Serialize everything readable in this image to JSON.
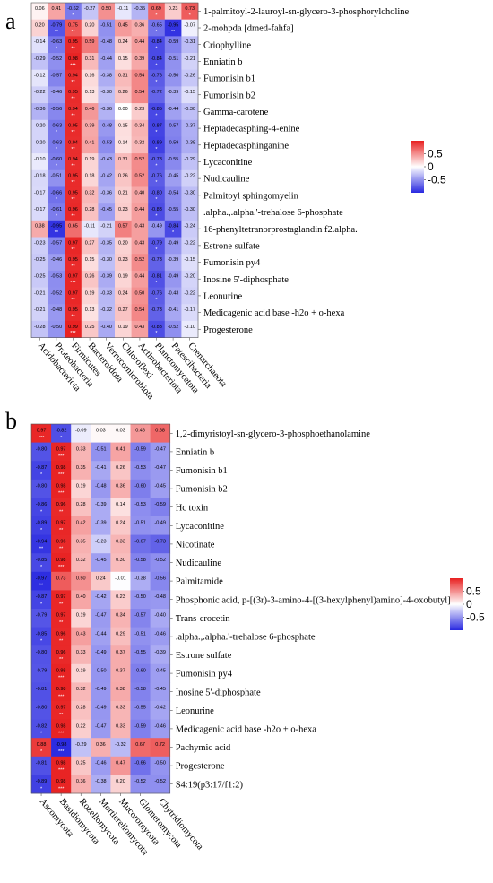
{
  "colors": {
    "neg": "#2828e0",
    "mid": "#ffffff",
    "pos": "#e82020"
  },
  "chart_data": [
    {
      "type": "heatmap",
      "panel_label": "a",
      "columns": [
        "Acidobacteriota",
        "Proteobacteria",
        "Firmicutes",
        "Bacteroidota",
        "Verrucomicrobiota",
        "Chloroflexi",
        "Actinobacteriota",
        "Planctomycetota",
        "Patescibacteria",
        "Crenarchaeota"
      ],
      "legend": {
        "ticks": [
          "0.5",
          "0",
          "-0.5"
        ]
      },
      "rows": [
        {
          "label": "1-palmitoyl-2-lauroyl-sn-glycero-3-phosphorylcholine",
          "values": [
            0.06,
            0.41,
            -0.62,
            -0.27,
            0.5,
            -0.11,
            -0.35,
            0.69,
            0.23,
            0.73
          ],
          "sig": [
            "",
            "",
            "*",
            "",
            "",
            "",
            "",
            "*",
            "",
            "*"
          ]
        },
        {
          "label": "2-mohpda [dmed-fahfa]",
          "values": [
            0.2,
            -0.79,
            0.75,
            0.2,
            -0.51,
            0.45,
            0.36,
            -0.65,
            -0.95,
            -0.07
          ],
          "sig": [
            "",
            "**",
            "**",
            "",
            "",
            "",
            "",
            "*",
            "**",
            ""
          ]
        },
        {
          "label": "Criophylline",
          "values": [
            -0.14,
            -0.63,
            0.95,
            0.59,
            -0.48,
            0.24,
            0.44,
            -0.84,
            -0.59,
            -0.31
          ],
          "sig": [
            "",
            "*",
            "**",
            "",
            "",
            "",
            "",
            "*",
            "",
            ""
          ]
        },
        {
          "label": "Enniatin b",
          "values": [
            -0.29,
            -0.52,
            0.98,
            0.31,
            -0.44,
            0.15,
            0.39,
            -0.84,
            -0.51,
            -0.21
          ],
          "sig": [
            "",
            "",
            "***",
            "",
            "",
            "",
            "",
            "*",
            "",
            ""
          ]
        },
        {
          "label": "Fumonisin b1",
          "values": [
            -0.12,
            -0.57,
            0.94,
            0.16,
            -0.38,
            0.31,
            0.54,
            -0.76,
            -0.5,
            -0.26
          ],
          "sig": [
            "",
            "",
            "**",
            "",
            "",
            "",
            "",
            "*",
            "",
            ""
          ]
        },
        {
          "label": "Fumonisin b2",
          "values": [
            -0.22,
            -0.46,
            0.95,
            0.13,
            -0.3,
            0.26,
            0.54,
            -0.72,
            -0.39,
            -0.15
          ],
          "sig": [
            "",
            "",
            "**",
            "",
            "",
            "",
            "",
            "",
            "",
            ""
          ]
        },
        {
          "label": "Gamma-carotene",
          "values": [
            -0.36,
            -0.56,
            0.94,
            0.46,
            -0.36,
            0.0,
            0.23,
            -0.85,
            -0.44,
            -0.3
          ],
          "sig": [
            "",
            "",
            "**",
            "",
            "",
            "",
            "",
            "*",
            "",
            ""
          ]
        },
        {
          "label": "Heptadecasphing-4-enine",
          "values": [
            -0.2,
            -0.63,
            0.95,
            0.39,
            -0.48,
            0.15,
            0.34,
            -0.87,
            -0.57,
            -0.37
          ],
          "sig": [
            "",
            "*",
            "**",
            "",
            "",
            "",
            "",
            "*",
            "",
            ""
          ]
        },
        {
          "label": "Heptadecasphinganine",
          "values": [
            -0.2,
            -0.63,
            0.94,
            0.41,
            -0.53,
            0.14,
            0.32,
            -0.89,
            -0.59,
            -0.38
          ],
          "sig": [
            "",
            "*",
            "**",
            "",
            "",
            "",
            "",
            "*",
            "",
            ""
          ]
        },
        {
          "label": "Lycaconitine",
          "values": [
            -0.1,
            -0.6,
            0.94,
            0.19,
            -0.43,
            0.31,
            0.52,
            -0.78,
            -0.55,
            -0.29
          ],
          "sig": [
            "",
            "*",
            "**",
            "",
            "",
            "",
            "",
            "*",
            "",
            ""
          ]
        },
        {
          "label": "Nudicauline",
          "values": [
            -0.18,
            -0.51,
            0.95,
            0.18,
            -0.42,
            0.26,
            0.52,
            -0.76,
            -0.45,
            -0.22
          ],
          "sig": [
            "",
            "",
            "**",
            "",
            "",
            "",
            "",
            "*",
            "",
            ""
          ]
        },
        {
          "label": "Palmitoyl sphingomyelin",
          "values": [
            -0.17,
            -0.66,
            0.95,
            0.32,
            -0.36,
            0.21,
            0.4,
            -0.8,
            -0.54,
            -0.3
          ],
          "sig": [
            "",
            "*",
            "**",
            "",
            "",
            "",
            "",
            "*",
            "",
            ""
          ]
        },
        {
          "label": ".alpha.,.alpha.'-trehalose 6-phosphate",
          "values": [
            -0.17,
            -0.61,
            0.96,
            0.28,
            -0.45,
            0.23,
            0.44,
            -0.83,
            -0.55,
            -0.3
          ],
          "sig": [
            "",
            "*",
            "**",
            "",
            "",
            "",
            "",
            "*",
            "",
            ""
          ]
        },
        {
          "label": "16-phenyltetranorprostaglandin f2.alpha.",
          "values": [
            0.38,
            -0.95,
            0.65,
            -0.11,
            -0.21,
            0.57,
            0.43,
            -0.49,
            -0.84,
            -0.24
          ],
          "sig": [
            "",
            "**",
            "",
            "",
            "",
            "",
            "",
            "",
            "*",
            ""
          ]
        },
        {
          "label": "Estrone sulfate",
          "values": [
            -0.23,
            -0.57,
            0.97,
            0.27,
            -0.35,
            0.2,
            0.43,
            -0.79,
            -0.49,
            -0.22
          ],
          "sig": [
            "",
            "",
            "**",
            "",
            "",
            "",
            "",
            "*",
            "",
            ""
          ]
        },
        {
          "label": "Fumonisin py4",
          "values": [
            -0.25,
            -0.46,
            0.95,
            0.15,
            -0.3,
            0.23,
            0.52,
            -0.73,
            -0.39,
            -0.15
          ],
          "sig": [
            "",
            "",
            "**",
            "",
            "",
            "",
            "",
            "",
            "",
            ""
          ]
        },
        {
          "label": "Inosine 5'-diphosphate",
          "values": [
            -0.25,
            -0.53,
            0.97,
            0.26,
            -0.39,
            0.19,
            0.44,
            -0.81,
            -0.49,
            -0.2
          ],
          "sig": [
            "",
            "",
            "***",
            "",
            "",
            "",
            "",
            "*",
            "",
            ""
          ]
        },
        {
          "label": "Leonurine",
          "values": [
            -0.21,
            -0.52,
            0.97,
            0.19,
            -0.33,
            0.24,
            0.5,
            -0.76,
            -0.43,
            -0.22
          ],
          "sig": [
            "",
            "",
            "**",
            "",
            "",
            "",
            "",
            "*",
            "",
            ""
          ]
        },
        {
          "label": "Medicagenic acid base -h2o + o-hexa",
          "values": [
            -0.21,
            -0.48,
            0.95,
            0.13,
            -0.32,
            0.27,
            0.54,
            -0.73,
            -0.41,
            -0.17
          ],
          "sig": [
            "",
            "",
            "**",
            "",
            "",
            "",
            "",
            "",
            "",
            ""
          ]
        },
        {
          "label": "Progesterone",
          "values": [
            -0.28,
            -0.5,
            0.99,
            0.25,
            -0.4,
            0.19,
            0.43,
            -0.83,
            -0.52,
            -0.1
          ],
          "sig": [
            "",
            "",
            "***",
            "",
            "",
            "",
            "",
            "*",
            "",
            ""
          ]
        }
      ]
    },
    {
      "type": "heatmap",
      "panel_label": "b",
      "columns": [
        "Ascomycota",
        "Basidiomycota",
        "Rozellomycota",
        "Mortierellomycota",
        "Mucoromycota",
        "Glomeromycota",
        "Chytridiomycota"
      ],
      "legend": {
        "ticks": [
          "0.5",
          "0",
          "-0.5"
        ]
      },
      "rows": [
        {
          "label": "1,2-dimyristoyl-sn-glycero-3-phosphoethanolamine",
          "values": [
            0.97,
            -0.82,
            -0.09,
            0.03,
            0.03,
            0.46,
            0.68
          ],
          "sig": [
            "***",
            "*",
            "",
            "",
            "",
            "",
            ""
          ]
        },
        {
          "label": "Enniatin b",
          "values": [
            -0.8,
            0.97,
            0.33,
            -0.51,
            0.41,
            -0.59,
            -0.47
          ],
          "sig": [
            "",
            "***",
            "",
            "",
            "",
            "",
            ""
          ]
        },
        {
          "label": "Fumonisin b1",
          "values": [
            -0.87,
            0.98,
            0.35,
            -0.41,
            0.26,
            -0.53,
            -0.47
          ],
          "sig": [
            "*",
            "***",
            "",
            "",
            "",
            "",
            ""
          ]
        },
        {
          "label": "Fumonisin b2",
          "values": [
            -0.8,
            0.98,
            0.19,
            -0.48,
            0.36,
            -0.6,
            -0.45
          ],
          "sig": [
            "",
            "***",
            "",
            "",
            "",
            "",
            ""
          ]
        },
        {
          "label": "Hc toxin",
          "values": [
            -0.86,
            0.96,
            0.28,
            -0.39,
            0.14,
            -0.53,
            -0.59
          ],
          "sig": [
            "*",
            "**",
            "",
            "",
            "",
            "",
            ""
          ]
        },
        {
          "label": "Lycaconitine",
          "values": [
            -0.89,
            0.97,
            0.42,
            -0.39,
            0.24,
            -0.51,
            -0.49
          ],
          "sig": [
            "*",
            "**",
            "",
            "",
            "",
            "",
            ""
          ]
        },
        {
          "label": "Nicotinate",
          "values": [
            -0.94,
            0.96,
            0.35,
            -0.23,
            0.33,
            -0.67,
            -0.73
          ],
          "sig": [
            "**",
            "**",
            "",
            "",
            "",
            "",
            ""
          ]
        },
        {
          "label": "Nudicauline",
          "values": [
            -0.85,
            0.98,
            0.32,
            -0.45,
            0.3,
            -0.58,
            -0.52
          ],
          "sig": [
            "*",
            "***",
            "",
            "",
            "",
            "",
            ""
          ]
        },
        {
          "label": "Palmitamide",
          "values": [
            -0.97,
            0.73,
            0.5,
            0.24,
            -0.01,
            -0.38,
            -0.56
          ],
          "sig": [
            "**",
            "",
            "",
            "",
            "",
            "",
            ""
          ]
        },
        {
          "label": "Phosphonic acid, p-[(3r)-3-amino-4-[(3-hexylphenyl)amino]-4-oxobutyl]-",
          "values": [
            -0.87,
            0.97,
            0.4,
            -0.42,
            0.23,
            -0.5,
            -0.48
          ],
          "sig": [
            "*",
            "**",
            "",
            "",
            "",
            "",
            ""
          ]
        },
        {
          "label": "Trans-crocetin",
          "values": [
            -0.79,
            0.97,
            0.19,
            -0.47,
            0.34,
            -0.57,
            -0.4
          ],
          "sig": [
            "",
            "**",
            "",
            "",
            "",
            "",
            ""
          ]
        },
        {
          "label": ".alpha.,.alpha.'-trehalose 6-phosphate",
          "values": [
            -0.85,
            0.96,
            0.43,
            -0.44,
            0.29,
            -0.51,
            -0.46
          ],
          "sig": [
            "*",
            "**",
            "",
            "",
            "",
            "",
            ""
          ]
        },
        {
          "label": "Estrone sulfate",
          "values": [
            -0.8,
            0.96,
            0.33,
            -0.49,
            0.37,
            -0.55,
            -0.39
          ],
          "sig": [
            "",
            "**",
            "",
            "",
            "",
            "",
            ""
          ]
        },
        {
          "label": "Fumonisin py4",
          "values": [
            -0.79,
            0.98,
            0.19,
            -0.5,
            0.37,
            -0.6,
            -0.45
          ],
          "sig": [
            "",
            "***",
            "",
            "",
            "",
            "",
            ""
          ]
        },
        {
          "label": "Inosine 5'-diphosphate",
          "values": [
            -0.81,
            0.98,
            0.32,
            -0.49,
            0.38,
            -0.58,
            -0.45
          ],
          "sig": [
            "",
            "***",
            "",
            "",
            "",
            "",
            ""
          ]
        },
        {
          "label": "Leonurine",
          "values": [
            -0.8,
            0.97,
            0.28,
            -0.49,
            0.33,
            -0.55,
            -0.42
          ],
          "sig": [
            "",
            "**",
            "",
            "",
            "",
            "",
            ""
          ]
        },
        {
          "label": "Medicagenic acid base -h2o + o-hexa",
          "values": [
            -0.82,
            0.98,
            0.22,
            -0.47,
            0.33,
            -0.59,
            -0.46
          ],
          "sig": [
            "*",
            "***",
            "",
            "",
            "",
            "",
            ""
          ]
        },
        {
          "label": "Pachymic acid",
          "values": [
            0.88,
            -0.98,
            -0.29,
            0.36,
            -0.32,
            0.67,
            0.72
          ],
          "sig": [
            "*",
            "***",
            "",
            "",
            "",
            "",
            ""
          ]
        },
        {
          "label": "Progesterone",
          "values": [
            -0.81,
            0.98,
            0.25,
            -0.46,
            0.47,
            -0.66,
            -0.5
          ],
          "sig": [
            "",
            "***",
            "",
            "",
            "",
            "",
            ""
          ]
        },
        {
          "label": "S4:19(p3:17/f1:2)",
          "values": [
            -0.89,
            0.98,
            0.36,
            -0.38,
            0.2,
            -0.52,
            -0.52
          ],
          "sig": [
            "*",
            "***",
            "",
            "",
            "",
            "",
            ""
          ]
        }
      ]
    }
  ]
}
